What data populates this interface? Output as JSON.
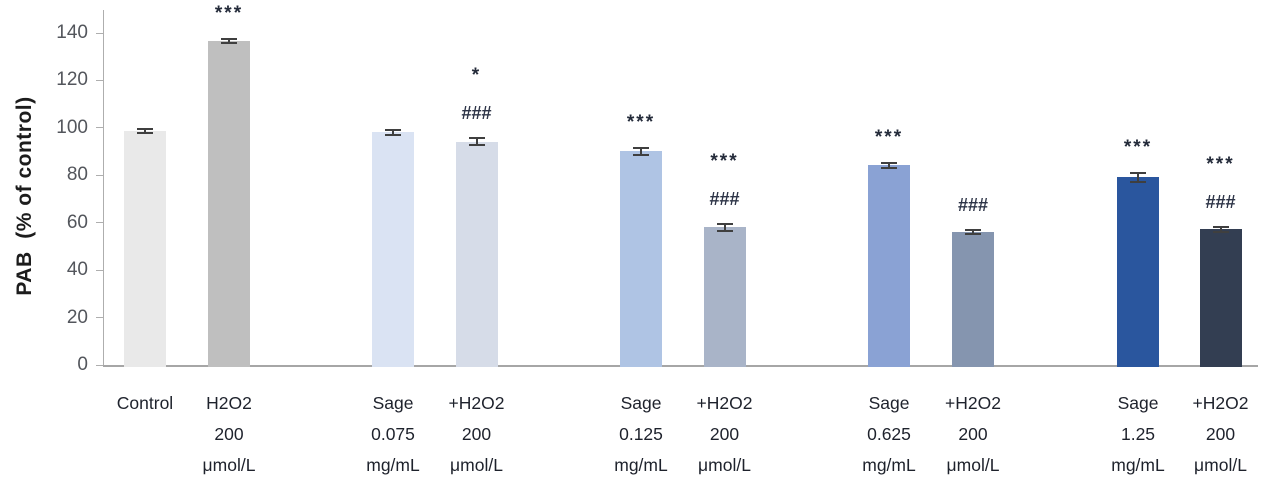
{
  "chart_data": {
    "type": "bar",
    "title": "",
    "ylabel": "PAB  (% of control)",
    "xlabel": "",
    "ylim": [
      0,
      150
    ],
    "yticks": [
      0,
      20,
      40,
      60,
      80,
      100,
      120,
      140
    ],
    "grid": false,
    "legend": "none",
    "error_bar_color": "#3f3f3f",
    "axis_color": "#aeaeae",
    "bars": [
      {
        "label_lines": [
          "Control"
        ],
        "value": 99.5,
        "error": 1,
        "color": "#e9e9e9",
        "annotations": []
      },
      {
        "label_lines": [
          "H2O2",
          "200",
          "μmol/L"
        ],
        "value": 137.5,
        "error": 1,
        "color": "#bfbfbf",
        "annotations": [
          "***"
        ]
      },
      {
        "label_lines": [
          "Sage",
          "0.075",
          "mg/mL"
        ],
        "value": 99,
        "error": 1,
        "color": "#dae3f3",
        "annotations": []
      },
      {
        "label_lines": [
          "+H2O2",
          "200",
          "μmol/L"
        ],
        "value": 95,
        "error": 1.5,
        "color": "#d6dce8",
        "annotations": [
          "*",
          "###"
        ]
      },
      {
        "label_lines": [
          "Sage",
          "0.125",
          "mg/mL"
        ],
        "value": 91,
        "error": 1.5,
        "color": "#afc4e4",
        "annotations": [
          "***"
        ]
      },
      {
        "label_lines": [
          "+H2O2",
          "200",
          "μmol/L"
        ],
        "value": 59,
        "error": 1.5,
        "color": "#a9b4c8",
        "annotations": [
          "***",
          "###"
        ]
      },
      {
        "label_lines": [
          "Sage",
          "0.625",
          "mg/mL"
        ],
        "value": 85,
        "error": 1,
        "color": "#8aa2d4",
        "annotations": [
          "***"
        ]
      },
      {
        "label_lines": [
          "+H2O2",
          "200",
          "μmol/L"
        ],
        "value": 57,
        "error": 0.8,
        "color": "#8595af",
        "annotations": [
          "###"
        ]
      },
      {
        "label_lines": [
          "Sage",
          "1.25",
          "mg/mL"
        ],
        "value": 80,
        "error": 2,
        "color": "#2a569e",
        "annotations": [
          "***"
        ]
      },
      {
        "label_lines": [
          "+H2O2",
          "200",
          "μmol/L"
        ],
        "value": 58,
        "error": 1,
        "color": "#333e52",
        "annotations": [
          "***",
          "###"
        ]
      }
    ]
  }
}
